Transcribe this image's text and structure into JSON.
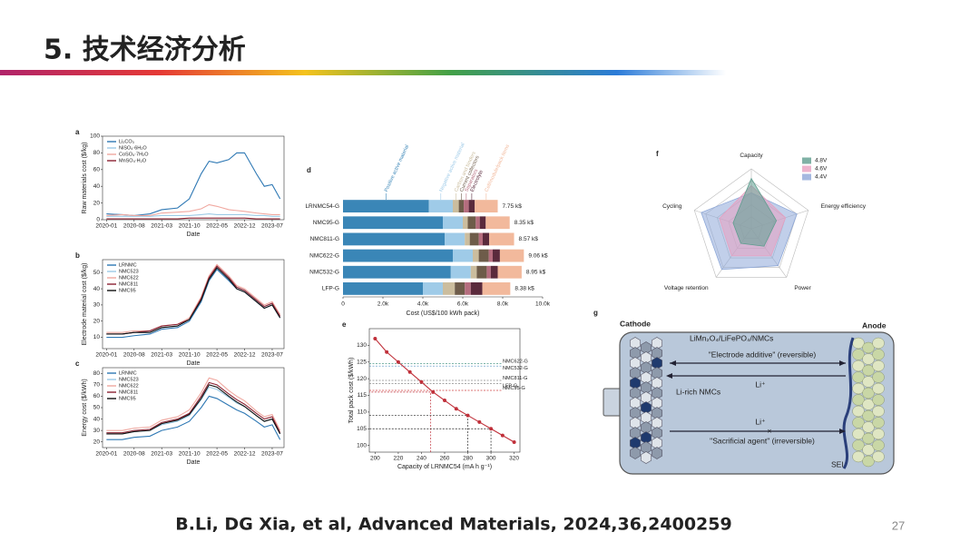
{
  "header": {
    "title": "5. 技术经济分析"
  },
  "footer": {
    "citation": "B.Li, DG Xia, et al, Advanced Materials, 2024,36,2400259",
    "page": "27"
  },
  "chart_data": [
    {
      "type": "line",
      "panel": "a",
      "xlabel": "Date",
      "ylabel": "Raw materials cost ($/kg)",
      "legend": "upper left",
      "x": [
        "2020-01",
        "2020-05",
        "2020-08",
        "2020-12",
        "2021-03",
        "2021-07",
        "2021-10",
        "2022-01",
        "2022-03",
        "2022-05",
        "2022-08",
        "2022-10",
        "2022-12",
        "2023-03",
        "2023-05",
        "2023-07",
        "2023-09"
      ],
      "xlim": [
        "2019-12",
        "2023-10"
      ],
      "xticks": [
        "2020-01",
        "2020-08",
        "2021-03",
        "2021-10",
        "2022-05",
        "2022-12",
        "2023-07"
      ],
      "ylim": [
        0,
        100
      ],
      "yticks": [
        0,
        20,
        40,
        60,
        80,
        100
      ],
      "series": [
        {
          "name": "Li₂CO₃",
          "color": "#2e78b4",
          "values": [
            7,
            6,
            5,
            7,
            12,
            14,
            25,
            55,
            70,
            68,
            72,
            80,
            80,
            55,
            40,
            42,
            25
          ]
        },
        {
          "name": "NiSO₄·6H₂O",
          "color": "#9ccbe6",
          "values": [
            4,
            4,
            4,
            4,
            5,
            5,
            5,
            6,
            7,
            6,
            6,
            6,
            6,
            5,
            5,
            4,
            4
          ]
        },
        {
          "name": "CoSO₄·7H₂O",
          "color": "#f0a8a0",
          "values": [
            5,
            6,
            5,
            5,
            8,
            9,
            10,
            13,
            18,
            16,
            12,
            11,
            10,
            8,
            7,
            6,
            6
          ]
        },
        {
          "name": "MnSO₄·H₂O",
          "color": "#8b2232",
          "values": [
            1,
            1,
            1,
            1,
            1,
            1,
            2,
            2,
            2,
            2,
            2,
            2,
            2,
            1,
            1,
            1,
            1
          ]
        }
      ]
    },
    {
      "type": "line",
      "panel": "b",
      "xlabel": "Date",
      "ylabel": "Electrode material cost ($/kg)",
      "legend": "upper left",
      "x": [
        "2020-01",
        "2020-05",
        "2020-08",
        "2020-12",
        "2021-03",
        "2021-07",
        "2021-10",
        "2022-01",
        "2022-03",
        "2022-05",
        "2022-08",
        "2022-10",
        "2022-12",
        "2023-03",
        "2023-05",
        "2023-07",
        "2023-09"
      ],
      "xlim": [
        "2019-12",
        "2023-10"
      ],
      "xticks": [
        "2020-01",
        "2020-08",
        "2021-03",
        "2021-10",
        "2022-05",
        "2022-12",
        "2023-07"
      ],
      "ylim": [
        3,
        58
      ],
      "yticks": [
        10,
        20,
        30,
        40,
        50
      ],
      "series": [
        {
          "name": "LRNMC",
          "color": "#2e78b4",
          "values": [
            10,
            10,
            11,
            12,
            15,
            16,
            20,
            32,
            45,
            52,
            45,
            40,
            38,
            32,
            28,
            30,
            22
          ]
        },
        {
          "name": "NMC523",
          "color": "#9ccbe6",
          "values": [
            12,
            12,
            13,
            13,
            16,
            17,
            21,
            33,
            46,
            53,
            46,
            41,
            39,
            33,
            29,
            31,
            23
          ]
        },
        {
          "name": "NMC622",
          "color": "#f0a8a0",
          "values": [
            13,
            13,
            14,
            14,
            17,
            18,
            22,
            35,
            48,
            55,
            48,
            42,
            40,
            34,
            30,
            32,
            24
          ]
        },
        {
          "name": "NMC811",
          "color": "#8b2232",
          "values": [
            12,
            12,
            13,
            14,
            17,
            18,
            21,
            34,
            47,
            54,
            47,
            41,
            39,
            33,
            29,
            31,
            23
          ]
        },
        {
          "name": "NMC95",
          "color": "#111111",
          "values": [
            12,
            12,
            13,
            13,
            16,
            17,
            21,
            33,
            46,
            53,
            46,
            40,
            38,
            32,
            28,
            30,
            22
          ]
        }
      ]
    },
    {
      "type": "line",
      "panel": "c",
      "xlabel": "Date",
      "ylabel": "Energy cost ($/kWh)",
      "legend": "upper left",
      "x": [
        "2020-01",
        "2020-05",
        "2020-08",
        "2020-12",
        "2021-03",
        "2021-07",
        "2021-10",
        "2022-01",
        "2022-03",
        "2022-05",
        "2022-08",
        "2022-10",
        "2022-12",
        "2023-03",
        "2023-05",
        "2023-07",
        "2023-09"
      ],
      "xlim": [
        "2019-12",
        "2023-10"
      ],
      "xticks": [
        "2020-01",
        "2020-08",
        "2021-03",
        "2021-10",
        "2022-05",
        "2022-12",
        "2023-07"
      ],
      "ylim": [
        15,
        85
      ],
      "yticks": [
        20,
        30,
        40,
        50,
        60,
        70,
        80
      ],
      "series": [
        {
          "name": "LRNMC",
          "color": "#2e78b4",
          "values": [
            22,
            22,
            24,
            25,
            30,
            33,
            38,
            50,
            60,
            58,
            52,
            48,
            45,
            38,
            33,
            35,
            22
          ]
        },
        {
          "name": "NMC523",
          "color": "#9ccbe6",
          "values": [
            27,
            27,
            29,
            30,
            35,
            38,
            43,
            57,
            68,
            66,
            59,
            54,
            51,
            43,
            38,
            40,
            27
          ]
        },
        {
          "name": "NMC622",
          "color": "#f0a8a0",
          "values": [
            30,
            30,
            32,
            33,
            39,
            42,
            48,
            63,
            76,
            74,
            65,
            60,
            56,
            47,
            42,
            44,
            30
          ]
        },
        {
          "name": "NMC811",
          "color": "#8b2232",
          "values": [
            28,
            28,
            30,
            31,
            37,
            40,
            45,
            60,
            72,
            70,
            62,
            57,
            53,
            45,
            40,
            42,
            28
          ]
        },
        {
          "name": "NMC95",
          "color": "#111111",
          "values": [
            27,
            27,
            29,
            30,
            36,
            39,
            44,
            58,
            70,
            68,
            60,
            55,
            51,
            43,
            38,
            40,
            27
          ]
        }
      ]
    },
    {
      "type": "barh_stacked",
      "panel": "d",
      "xlabel": "Cost (US$/100 kWh pack)",
      "categories": [
        "LRNMC54-G",
        "NMC95-G",
        "NMC811-G",
        "NMC622-G",
        "NMC532-G",
        "LFP-G"
      ],
      "total_labels": [
        "7.75 k$",
        "8.35 k$",
        "8.57 k$",
        "9.06 k$",
        "8.95 k$",
        "8.38 k$"
      ],
      "xlim": [
        0,
        10000
      ],
      "xticks": [
        0,
        {
          "value": 2000,
          "label": "2.0k"
        },
        {
          "value": 4000,
          "label": "4.0k"
        },
        {
          "value": 6000,
          "label": "6.0k"
        },
        {
          "value": 8000,
          "label": "8.0k"
        },
        {
          "value": 10000,
          "label": "10.0k"
        }
      ],
      "series": [
        {
          "name": "Positive active material",
          "color": "#3a86b7",
          "values": [
            4300,
            5000,
            5100,
            5500,
            5400,
            4000
          ]
        },
        {
          "name": "Negative active material",
          "color": "#9fcbe8",
          "values": [
            1200,
            1000,
            1000,
            1000,
            1000,
            1000
          ]
        },
        {
          "name": "Carbon and binders",
          "color": "#cbbd9e",
          "values": [
            300,
            250,
            250,
            300,
            300,
            600
          ]
        },
        {
          "name": "Current collectors",
          "color": "#6e5c4a",
          "values": [
            250,
            400,
            450,
            500,
            500,
            500
          ]
        },
        {
          "name": "Separators",
          "color": "#b56d7e",
          "values": [
            250,
            200,
            200,
            200,
            200,
            300
          ]
        },
        {
          "name": "Electrolyte",
          "color": "#5a2a3c",
          "values": [
            300,
            300,
            320,
            360,
            350,
            580
          ]
        },
        {
          "name": "Cell/module/pack items",
          "color": "#f2b99c",
          "values": [
            1150,
            1200,
            1250,
            1200,
            1200,
            1400
          ]
        }
      ]
    },
    {
      "type": "line",
      "panel": "e",
      "xlabel": "Capacity of LRNMC54 (mA h g⁻¹)",
      "ylabel": "Total pack cost ($/kWh)",
      "markers": true,
      "x": [
        200,
        210,
        220,
        230,
        240,
        250,
        260,
        270,
        280,
        290,
        300,
        310,
        320
      ],
      "xlim": [
        195,
        325
      ],
      "xticks": [
        200,
        220,
        240,
        260,
        280,
        300,
        320
      ],
      "ylim": [
        98,
        135
      ],
      "yticks": [
        100,
        105,
        110,
        115,
        120,
        125,
        130
      ],
      "series": [
        {
          "name": "LRNMC54",
          "color": "#c0303a",
          "values": [
            132,
            128,
            125,
            122,
            119,
            116,
            113.5,
            111,
            109,
            107,
            105,
            103,
            101
          ]
        }
      ],
      "references": [
        {
          "name": "NMC622-G",
          "value": 124.5,
          "color": "#4f9a8a"
        },
        {
          "name": "NMC532-G",
          "value": 123.8,
          "color": "#4f8fbf"
        },
        {
          "name": "NMC811-G",
          "value": 119.5,
          "color": "#888888"
        },
        {
          "name": "LFP-G",
          "value": 118.5,
          "color": "#888888"
        },
        {
          "name": "NMC95-G",
          "value": 116.5,
          "color": "#d04040"
        }
      ],
      "guides": [
        {
          "x": 248,
          "y": 116,
          "color": "#c0303a"
        },
        {
          "x": 280,
          "y": 109,
          "color": "#222222"
        },
        {
          "x": 300,
          "y": 105,
          "color": "#222222"
        }
      ]
    },
    {
      "type": "radar",
      "panel": "f",
      "legend": "upper right",
      "axes": [
        "Capacity",
        "Energy efficiency",
        "Power",
        "Voltage retention",
        "Cycling"
      ],
      "rlim": [
        0,
        5
      ],
      "rticks": [
        1,
        2,
        3,
        4,
        5
      ],
      "series": [
        {
          "name": "4.8V",
          "color": "#5f9e8f",
          "values": [
            4.2,
            2.2,
            1.8,
            1.5,
            1.6
          ]
        },
        {
          "name": "4.6V",
          "color": "#e8a0c0",
          "values": [
            3.6,
            3.0,
            2.8,
            2.8,
            2.8
          ]
        },
        {
          "name": "4.4V",
          "color": "#8ea8d8",
          "values": [
            3.0,
            4.0,
            3.8,
            4.2,
            4.4
          ]
        }
      ]
    }
  ],
  "diagram": {
    "panel": "g",
    "cathode": "Cathode",
    "anode": "Anode",
    "cathode_materials": "LiMn₂O₄/LiFePO₄/NMCs",
    "top_process": "\"Electrode additive\" (reversible)",
    "top_ion": "Li⁺",
    "additive": "Li-rich NMCs",
    "bottom_ion": "Li⁺",
    "blocked": "×",
    "bottom_process": "\"Sacrificial agent\" (irreversible)",
    "sei": "SEI"
  }
}
